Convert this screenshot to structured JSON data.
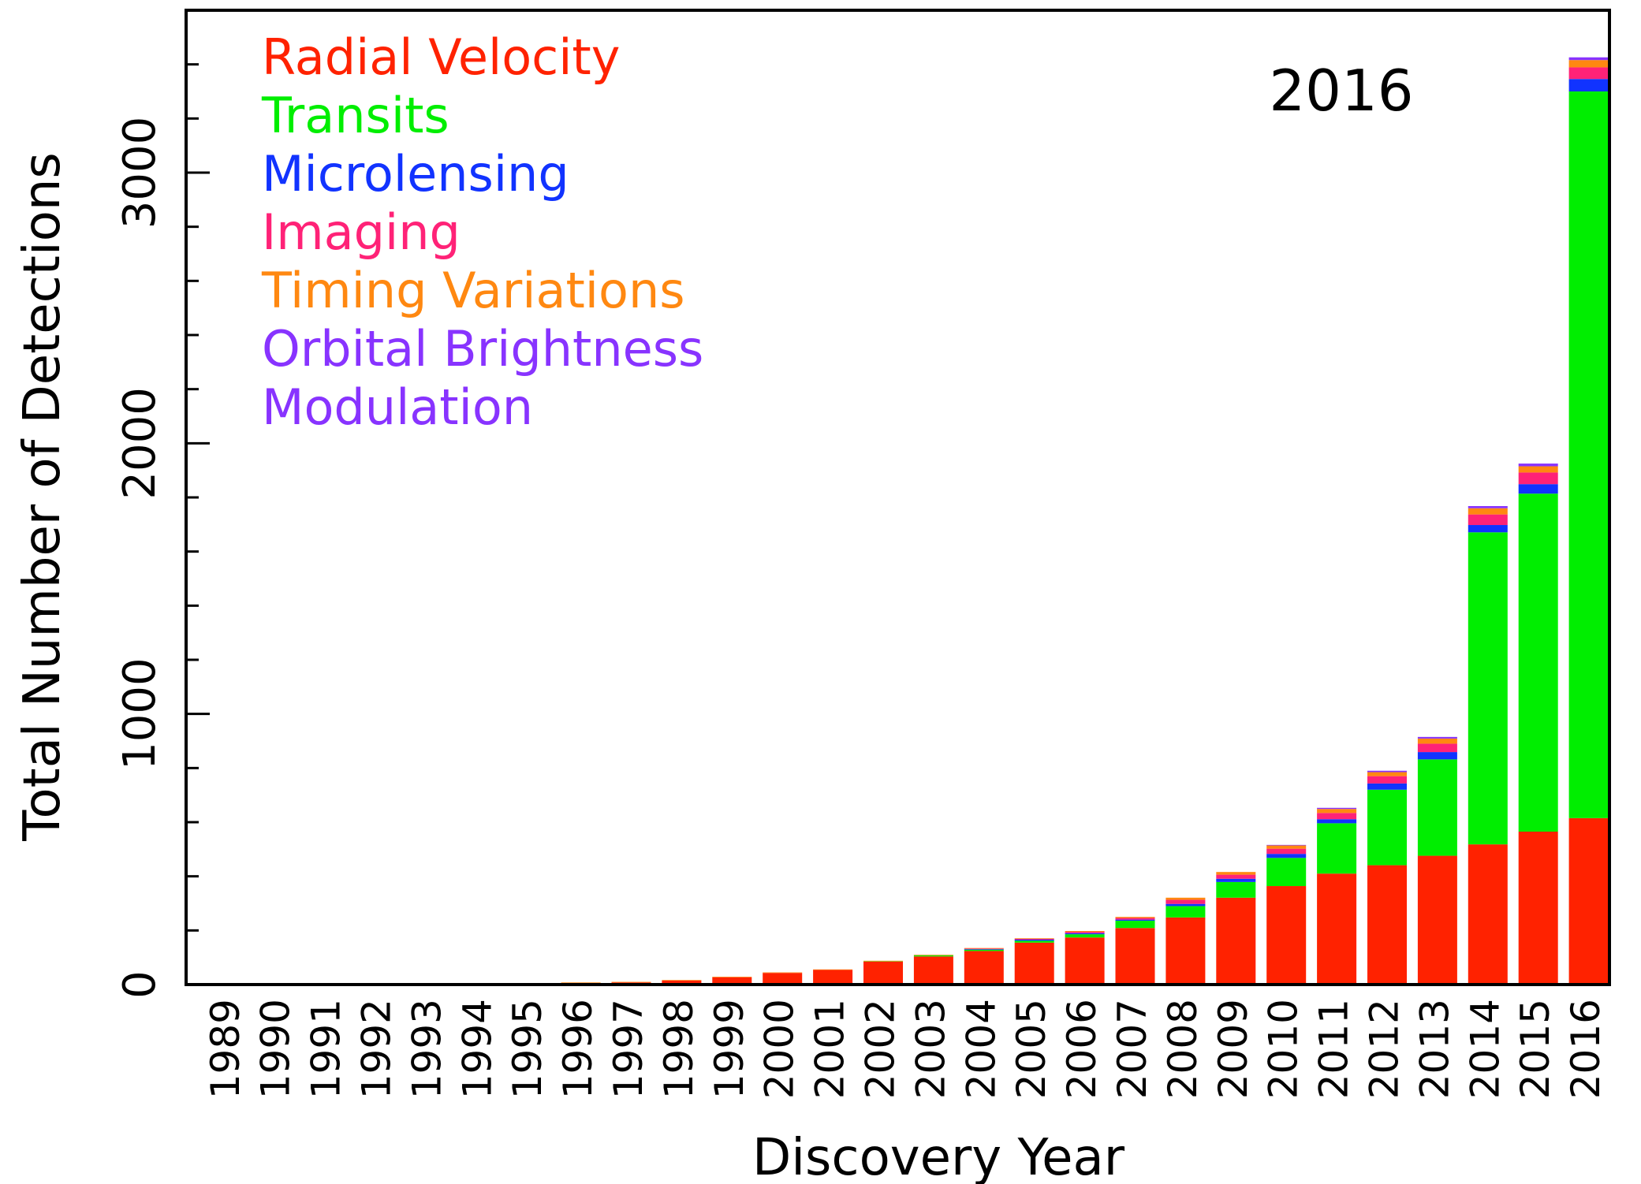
{
  "chart_data": {
    "type": "stacked_bar",
    "annotation": "2016",
    "x_label": "Discovery Year",
    "y_label": "Total Number of Detections",
    "categories": [
      "1989",
      "1990",
      "1991",
      "1992",
      "1993",
      "1994",
      "1995",
      "1996",
      "1997",
      "1998",
      "1999",
      "2000",
      "2001",
      "2002",
      "2003",
      "2004",
      "2005",
      "2006",
      "2007",
      "2008",
      "2009",
      "2010",
      "2011",
      "2012",
      "2013",
      "2014",
      "2015",
      "2016"
    ],
    "series": [
      {
        "name": "Radial Velocity",
        "color": "#ff2200",
        "values": [
          1,
          1,
          1,
          1,
          2,
          2,
          3,
          6,
          8,
          15,
          27,
          43,
          54,
          85,
          104,
          124,
          155,
          174,
          209,
          248,
          321,
          364,
          410,
          441,
          476,
          518,
          565,
          615
        ]
      },
      {
        "name": "Transits",
        "color": "#00ee00",
        "values": [
          0,
          0,
          0,
          0,
          0,
          0,
          0,
          0,
          0,
          0,
          0,
          0,
          0,
          1,
          4,
          5,
          7,
          12,
          27,
          42,
          58,
          104,
          186,
          279,
          356,
          1153,
          1249,
          2685
        ]
      },
      {
        "name": "Microlensing",
        "color": "#1133ff",
        "values": [
          0,
          0,
          0,
          0,
          0,
          0,
          0,
          0,
          0,
          0,
          0,
          0,
          0,
          0,
          0,
          2,
          4,
          4,
          4,
          8,
          12,
          15,
          15,
          23,
          27,
          27,
          35,
          46
        ]
      },
      {
        "name": "Imaging",
        "color": "#ff2277",
        "values": [
          0,
          0,
          0,
          0,
          0,
          0,
          0,
          0,
          0,
          0,
          0,
          0,
          0,
          0,
          0,
          2,
          3,
          5,
          6,
          15,
          15,
          19,
          23,
          27,
          31,
          39,
          43,
          43
        ]
      },
      {
        "name": "Timing Variations",
        "color": "#ff8811",
        "values": [
          0,
          0,
          0,
          2,
          2,
          2,
          2,
          2,
          2,
          2,
          2,
          2,
          2,
          2,
          2,
          2,
          2,
          3,
          4,
          8,
          10,
          12,
          15,
          15,
          19,
          23,
          23,
          27
        ]
      },
      {
        "name": "Orbital Brightness Modulation",
        "color": "#8833ff",
        "values": [
          0,
          0,
          0,
          0,
          0,
          0,
          0,
          0,
          0,
          0,
          0,
          0,
          0,
          0,
          0,
          0,
          0,
          0,
          0,
          0,
          0,
          2,
          4,
          5,
          6,
          8,
          10,
          10
        ]
      }
    ],
    "ylim": [
      0,
      3600
    ],
    "yticks": [
      0,
      1000,
      2000,
      3000
    ],
    "minor_yticks": [
      200,
      400,
      600,
      800,
      1200,
      1400,
      1600,
      1800,
      2200,
      2400,
      2600,
      2800,
      3200,
      3400
    ]
  }
}
